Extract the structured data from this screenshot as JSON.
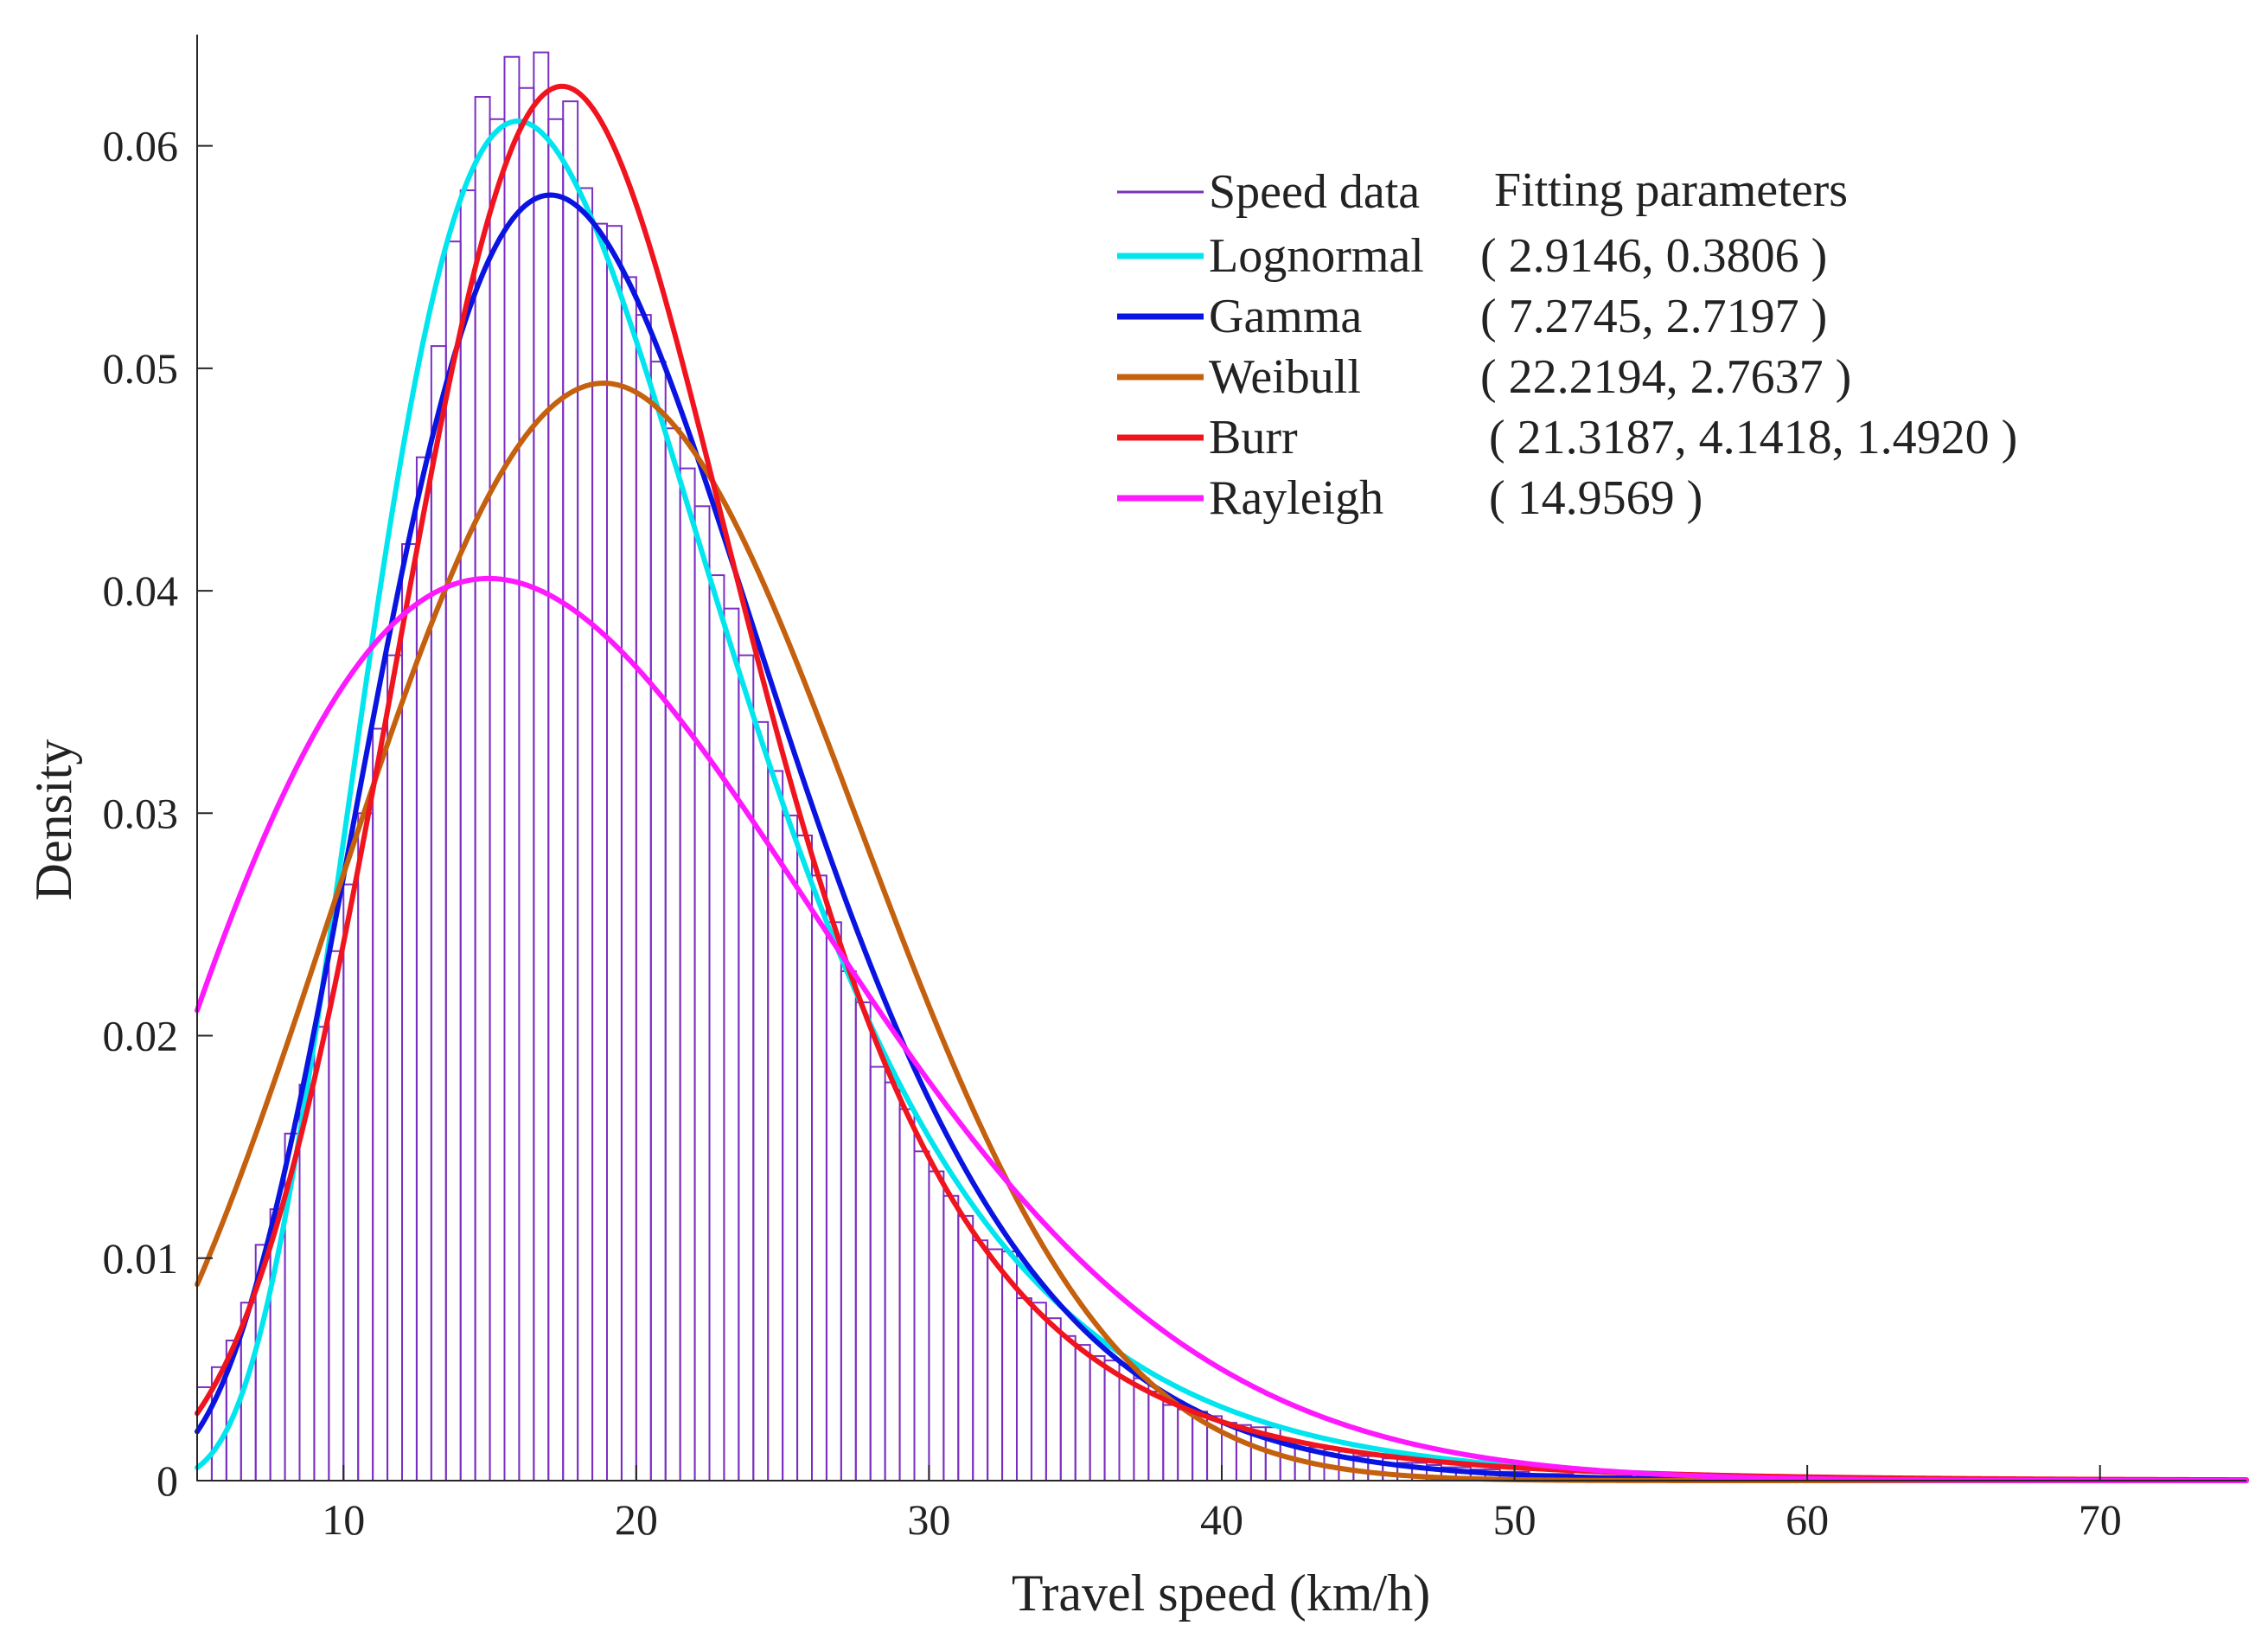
{
  "chart_data": {
    "type": "histogram",
    "xlabel": "Travel speed (km/h)",
    "ylabel": "Density",
    "xlim": [
      5,
      75
    ],
    "ylim": [
      0,
      0.065
    ],
    "xticks": [
      10,
      20,
      30,
      40,
      50,
      60,
      70
    ],
    "xtick_labels": [
      "10",
      "20",
      "30",
      "40",
      "50",
      "60",
      "70"
    ],
    "yticks": [
      0,
      0.01,
      0.02,
      0.03,
      0.04,
      0.05,
      0.06
    ],
    "ytick_labels": [
      "0",
      "0.01",
      "0.02",
      "0.03",
      "0.04",
      "0.05",
      "0.06"
    ],
    "legend_header": "Fitting parameters",
    "histogram": {
      "name": "Speed data",
      "color": "#7b2fc0",
      "bin_start": 5,
      "bin_width": 0.5,
      "values": [
        0.0042,
        0.0051,
        0.0063,
        0.008,
        0.0106,
        0.0122,
        0.0156,
        0.0178,
        0.0204,
        0.0238,
        0.0268,
        0.03,
        0.0338,
        0.0371,
        0.0421,
        0.046,
        0.051,
        0.0557,
        0.058,
        0.0622,
        0.0612,
        0.064,
        0.0626,
        0.0642,
        0.0612,
        0.062,
        0.0581,
        0.0565,
        0.0564,
        0.0541,
        0.0524,
        0.0503,
        0.0473,
        0.0455,
        0.0438,
        0.0407,
        0.0392,
        0.0371,
        0.0341,
        0.0319,
        0.0299,
        0.029,
        0.0272,
        0.0251,
        0.0229,
        0.0215,
        0.0186,
        0.0179,
        0.0167,
        0.0148,
        0.0139,
        0.0128,
        0.0119,
        0.0108,
        0.0104,
        0.0103,
        0.0082,
        0.008,
        0.0073,
        0.0065,
        0.0061,
        0.0056,
        0.0054,
        0.0052,
        0.0046,
        0.004,
        0.0034,
        0.0032,
        0.0031,
        0.0029,
        0.0026,
        0.0025,
        0.0024,
        0.0024,
        0.0018,
        0.0017,
        0.0015,
        0.0014,
        0.0013,
        0.0011,
        0.0011,
        0.001,
        0.0008,
        0.0008,
        0.0007,
        0.0006,
        0.0006,
        0.0005,
        0.0005,
        0.0004,
        0.0004,
        0.0003,
        0.0003,
        0.0003,
        0.0002,
        0.0002,
        0.0002,
        0.0002,
        0.0001,
        0.0001,
        0.0001,
        0.0001,
        0.0001,
        0.0001,
        0.0001,
        0.0001,
        0.0001,
        0.0001,
        0.0001,
        0.0001,
        0.0001,
        0.0001,
        0.0001,
        0.0001,
        0.0001,
        0.0001,
        0.0001,
        0.0001,
        0.0001,
        0.0001,
        0.0001,
        0.0001,
        0.0001,
        0.0001,
        0.0001,
        0.0001,
        0.0001,
        0.0001,
        0.0001,
        0.0001,
        0.0001,
        0.0001,
        0.0001,
        0.0001,
        0.0001,
        0.0001,
        0.0001,
        0.0001,
        0.0001,
        0.0001
      ]
    },
    "series": [
      {
        "name": "Lognormal",
        "dist": "lognormal",
        "params": [
          2.9146,
          0.3806
        ],
        "params_label": "( 2.9146, 0.3806 )",
        "color": "#00e5ee"
      },
      {
        "name": "Gamma",
        "dist": "gamma",
        "params": [
          7.2745,
          2.7197
        ],
        "params_label": "( 7.2745, 2.7197 )",
        "color": "#0a14e0"
      },
      {
        "name": "Weibull",
        "dist": "weibull",
        "params": [
          22.2194,
          2.7637
        ],
        "params_label": "( 22.2194, 2.7637 )",
        "color": "#c4600e"
      },
      {
        "name": "Burr",
        "dist": "burr",
        "params": [
          21.3187,
          4.1418,
          1.492
        ],
        "params_label": "( 21.3187, 4.1418, 1.4920 )",
        "color": "#f0141e"
      },
      {
        "name": "Rayleigh",
        "dist": "rayleigh",
        "params": [
          14.9569
        ],
        "params_label": "( 14.9569 )",
        "color": "#ff19ff"
      }
    ]
  }
}
